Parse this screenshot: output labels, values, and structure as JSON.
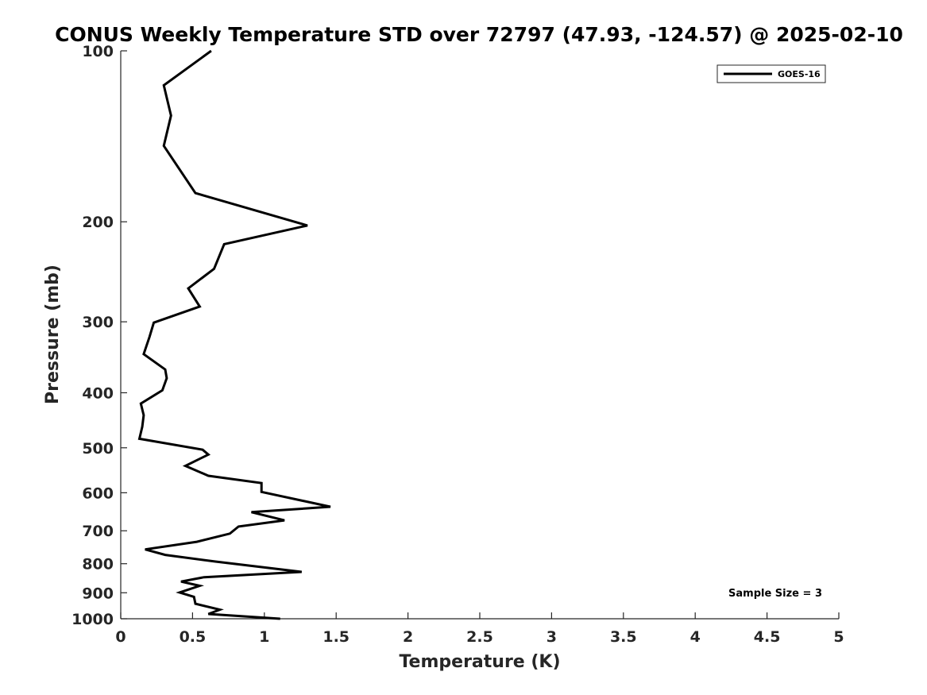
{
  "chart_data": {
    "type": "line",
    "title": "CONUS Weekly Temperature STD over 72797 (47.93, -124.57) @ 2025-02-10",
    "xlabel": "Temperature (K)",
    "ylabel": "Pressure (mb)",
    "xlim": [
      0,
      5
    ],
    "ylim": [
      100,
      1000
    ],
    "y_scale": "log",
    "y_reversed": true,
    "x_ticks": [
      0,
      0.5,
      1,
      1.5,
      2,
      2.5,
      3,
      3.5,
      4,
      4.5,
      5
    ],
    "x_tick_labels": [
      "0",
      "0.5",
      "1",
      "1.5",
      "2",
      "2.5",
      "3",
      "3.5",
      "4",
      "4.5",
      "5"
    ],
    "y_ticks": [
      100,
      200,
      300,
      400,
      500,
      600,
      700,
      800,
      900,
      1000
    ],
    "y_tick_labels": [
      "100",
      "200",
      "300",
      "400",
      "500",
      "600",
      "700",
      "800",
      "900",
      "1000"
    ],
    "grid": false,
    "legend_position": "top-right",
    "annotation": "Sample Size = 3",
    "series": [
      {
        "name": "GOES-16",
        "color": "#000000",
        "x": [
          0.63,
          0.3,
          0.35,
          0.3,
          0.52,
          1.3,
          0.72,
          0.65,
          0.47,
          0.55,
          0.23,
          0.2,
          0.16,
          0.31,
          0.32,
          0.29,
          0.14,
          0.16,
          0.15,
          0.13,
          0.57,
          0.61,
          0.45,
          0.61,
          0.98,
          0.98,
          1.46,
          0.91,
          1.14,
          0.82,
          0.76,
          0.53,
          0.17,
          0.31,
          0.66,
          1.26,
          0.58,
          0.42,
          0.55,
          0.41,
          0.51,
          0.52,
          0.69,
          0.61,
          1.11
        ],
        "y": [
          100,
          115,
          130,
          147,
          178,
          203,
          219,
          242,
          262,
          282,
          301,
          319,
          342,
          364,
          377,
          396,
          418,
          438,
          459,
          482,
          504,
          514,
          538,
          560,
          577,
          598,
          635,
          649,
          671,
          688,
          708,
          732,
          755,
          772,
          793,
          827,
          845,
          860,
          875,
          899,
          915,
          941,
          964,
          981,
          1000
        ]
      }
    ]
  }
}
